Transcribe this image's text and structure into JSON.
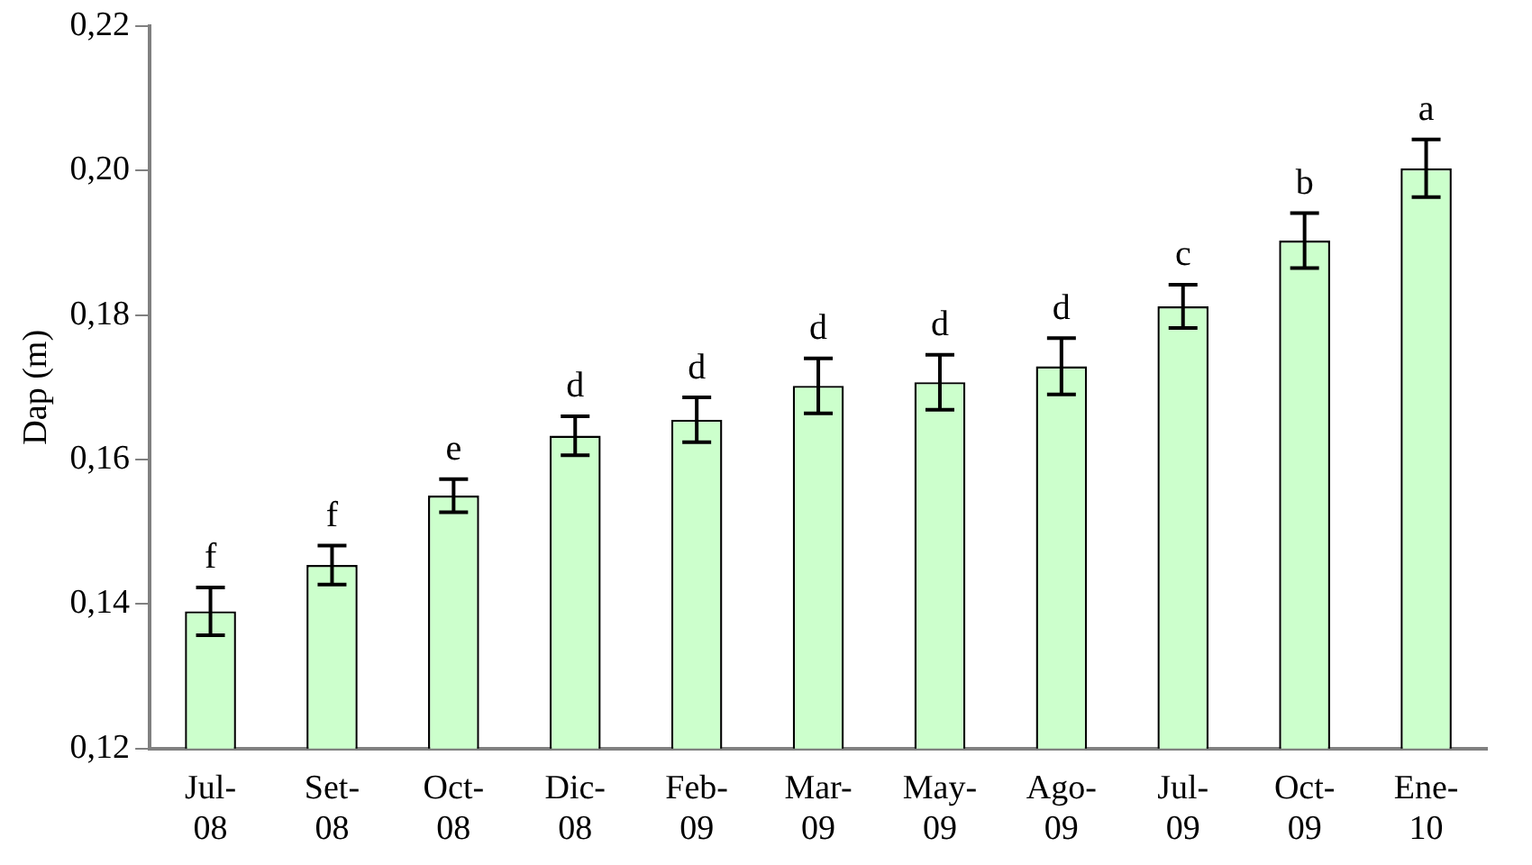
{
  "chart_data": {
    "type": "bar",
    "ylabel": "Dap (m)",
    "categories": [
      "Jul-08",
      "Set-08",
      "Oct-08",
      "Dic-08",
      "Feb-09",
      "Mar-09",
      "May-09",
      "Ago-09",
      "Jul-09",
      "Oct-09",
      "Ene-10"
    ],
    "values": [
      0.139,
      0.1454,
      0.155,
      0.1633,
      0.1655,
      0.1702,
      0.1707,
      0.1729,
      0.1812,
      0.1903,
      0.2003
    ],
    "errors": [
      0.0033,
      0.0027,
      0.0023,
      0.0027,
      0.0031,
      0.0038,
      0.0038,
      0.0039,
      0.003,
      0.0038,
      0.004
    ],
    "color": "#ccffcc",
    "ylim": [
      0.12,
      0.22
    ],
    "yticks": [
      {
        "value": 0.12,
        "label": "0,12"
      },
      {
        "value": 0.14,
        "label": "0,14"
      },
      {
        "value": 0.16,
        "label": "0,16"
      },
      {
        "value": 0.18,
        "label": "0,18"
      },
      {
        "value": 0.2,
        "label": "0,20"
      },
      {
        "value": 0.22,
        "label": "0,22"
      }
    ],
    "annotations": [
      {
        "text": "f",
        "x": "Jul-08",
        "y": 0.1423
      },
      {
        "text": "f",
        "x": "Set-08",
        "y": 0.1481
      },
      {
        "text": "e",
        "x": "Oct-08",
        "y": 0.1573
      },
      {
        "text": "d",
        "x": "Dic-08",
        "y": 0.166
      },
      {
        "text": "d",
        "x": "Feb-09",
        "y": 0.1686
      },
      {
        "text": "d",
        "x": "Mar-09",
        "y": 0.174
      },
      {
        "text": "d",
        "x": "May-09",
        "y": 0.1745
      },
      {
        "text": "d",
        "x": "Ago-09",
        "y": 0.1768
      },
      {
        "text": "c",
        "x": "Jul-09",
        "y": 0.1842
      },
      {
        "text": "b",
        "x": "Oct-09",
        "y": 0.1941
      },
      {
        "text": "a",
        "x": "Ene-10",
        "y": 0.2043
      }
    ],
    "grid": false,
    "legend": false
  }
}
